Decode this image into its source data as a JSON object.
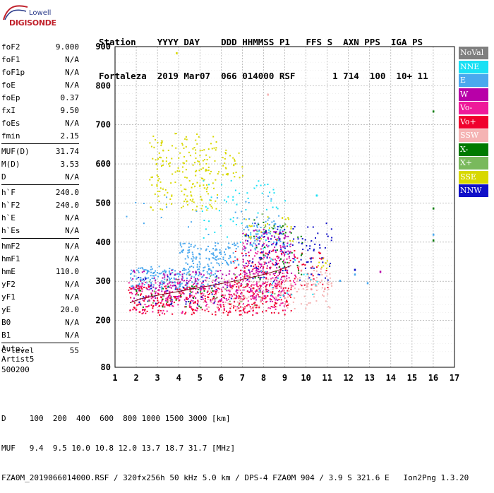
{
  "logo": {
    "line1": "Lowell",
    "line2": "DIGISONDE"
  },
  "header": {
    "labels": "Station    YYYY DAY    DDD HHMMSS P1   FFS S  AXN PPS  IGA PS",
    "values": "Fortaleza  2019 Mar07  066 014000 RSF       1 714  100  10+ 11"
  },
  "params_group1": [
    {
      "name": "foF2",
      "value": "9.000"
    },
    {
      "name": "foF1",
      "value": "N/A"
    },
    {
      "name": "foF1p",
      "value": "N/A"
    },
    {
      "name": "foE",
      "value": "N/A"
    },
    {
      "name": "foEp",
      "value": "0.37"
    },
    {
      "name": "fxI",
      "value": "9.50"
    },
    {
      "name": "foEs",
      "value": "N/A"
    },
    {
      "name": "fmin",
      "value": "2.15"
    }
  ],
  "params_group2": [
    {
      "name": "MUF(D)",
      "value": "31.74"
    },
    {
      "name": "M(D)",
      "value": "3.53"
    },
    {
      "name": "D",
      "value": "N/A"
    }
  ],
  "params_group3": [
    {
      "name": "h`F",
      "value": "240.0"
    },
    {
      "name": "h`F2",
      "value": "240.0"
    },
    {
      "name": "h`E",
      "value": "N/A"
    },
    {
      "name": "h`Es",
      "value": "N/A"
    }
  ],
  "params_group4": [
    {
      "name": "hmF2",
      "value": "N/A"
    },
    {
      "name": "hmF1",
      "value": "N/A"
    },
    {
      "name": "hmE",
      "value": "110.0"
    },
    {
      "name": "yF2",
      "value": "N/A"
    },
    {
      "name": "yF1",
      "value": "N/A"
    },
    {
      "name": "yE",
      "value": "20.0"
    },
    {
      "name": "B0",
      "value": "N/A"
    },
    {
      "name": "B1",
      "value": "N/A"
    }
  ],
  "params_group5": [
    {
      "name": "C-level",
      "value": "55"
    }
  ],
  "auto": {
    "line1": "Auto:",
    "line2": "Artist5",
    "line3": "500200"
  },
  "legend": [
    {
      "label": "NoVal",
      "color": "#7f7f7f"
    },
    {
      "label": "NNE",
      "color": "#19e0f4"
    },
    {
      "label": "E",
      "color": "#4aa8ee"
    },
    {
      "label": "W",
      "color": "#b800a8"
    },
    {
      "label": "Vo-",
      "color": "#ee1a9a"
    },
    {
      "label": "Vo+",
      "color": "#f0002e"
    },
    {
      "label": "SSW",
      "color": "#f5b3b3"
    },
    {
      "label": "X-",
      "color": "#007a00"
    },
    {
      "label": "X+",
      "color": "#79b95c"
    },
    {
      "label": "SSE",
      "color": "#d8d800"
    },
    {
      "label": "NNW",
      "color": "#1010c8"
    }
  ],
  "bottom": {
    "row1": "D     100  200  400  600  800 1000 1500 3000 [km]",
    "row2": "MUF   9.4  9.5 10.0 10.8 12.0 13.7 18.7 31.7 [MHz]",
    "row3": "FZA0M_2019066014000.RSF / 320fx256h 50 kHz 5.0 km / DPS-4 FZA0M 904 / 3.9 S 321.6 E   Ion2Png 1.3.20"
  },
  "chart_data": {
    "type": "scatter",
    "xlim": [
      1,
      17
    ],
    "ylim": [
      80,
      900
    ],
    "x_ticks": [
      1,
      2,
      3,
      4,
      5,
      6,
      7,
      8,
      9,
      10,
      11,
      12,
      13,
      14,
      15,
      16,
      17
    ],
    "y_ticks": [
      80,
      200,
      300,
      400,
      500,
      600,
      700,
      800,
      900
    ],
    "grid": true,
    "legend_position": "right",
    "trace": {
      "color": "#f0002e",
      "x": [
        1.7,
        2.2,
        2.8,
        3.4,
        4.0,
        4.6,
        5.2,
        5.8,
        6.4,
        7.0,
        7.6,
        8.2,
        8.8,
        9.3
      ],
      "y": [
        245,
        255,
        262,
        268,
        274,
        280,
        286,
        292,
        298,
        305,
        312,
        320,
        330,
        340
      ]
    },
    "series": [
      {
        "color_key": 2,
        "clusters": [
          {
            "x": [
              1.7,
              5.8
            ],
            "y": [
              280,
              340
            ],
            "n": 220
          },
          {
            "x": [
              4.0,
              6.8
            ],
            "y": [
              340,
              400
            ],
            "n": 120
          },
          {
            "x": [
              7.0,
              9.0
            ],
            "y": [
              380,
              470
            ],
            "n": 80
          },
          {
            "x": [
              1.5,
              8.5
            ],
            "y": [
              420,
              520
            ],
            "n": 20
          }
        ]
      },
      {
        "color_key": 3,
        "clusters": [
          {
            "x": [
              1.8,
              9.2
            ],
            "y": [
              250,
              330
            ],
            "n": 260
          },
          {
            "x": [
              7.0,
              9.3
            ],
            "y": [
              320,
              440
            ],
            "n": 110
          }
        ]
      },
      {
        "color_key": 4,
        "clusters": [
          {
            "x": [
              1.6,
              9.0
            ],
            "y": [
              220,
              300
            ],
            "n": 240
          },
          {
            "x": [
              7.0,
              9.5
            ],
            "y": [
              290,
              400
            ],
            "n": 80
          }
        ]
      },
      {
        "color_key": 5,
        "clusters": [
          {
            "x": [
              1.6,
              9.3
            ],
            "y": [
              215,
              290
            ],
            "n": 300
          },
          {
            "x": [
              6.5,
              11.0
            ],
            "y": [
              280,
              380
            ],
            "n": 120
          }
        ]
      },
      {
        "color_key": 6,
        "clusters": [
          {
            "x": [
              5.0,
              11.2
            ],
            "y": [
              230,
              310
            ],
            "n": 150
          },
          {
            "x": [
              9.5,
              11.2
            ],
            "y": [
              280,
              340
            ],
            "n": 40
          }
        ]
      },
      {
        "color_key": 1,
        "clusters": [
          {
            "x": [
              5.0,
              9.0
            ],
            "y": [
              400,
              560
            ],
            "n": 60
          },
          {
            "x": [
              7.5,
              10.5
            ],
            "y": [
              260,
              400
            ],
            "n": 30
          }
        ]
      },
      {
        "color_key": 9,
        "clusters": [
          {
            "x": [
              2.6,
              5.8
            ],
            "y": [
              480,
              680
            ],
            "n": 200
          },
          {
            "x": [
              5.8,
              7.0
            ],
            "y": [
              560,
              640
            ],
            "n": 30
          },
          {
            "x": [
              7.0,
              9.5
            ],
            "y": [
              400,
              470
            ],
            "n": 30
          },
          {
            "x": [
              10.5,
              11.2
            ],
            "y": [
              320,
              360
            ],
            "n": 10
          }
        ]
      },
      {
        "color_key": 7,
        "clusters": [
          {
            "x": [
              7.5,
              9.8
            ],
            "y": [
              300,
              460
            ],
            "n": 40
          },
          {
            "x": [
              1.8,
              6.0
            ],
            "y": [
              230,
              290
            ],
            "n": 30
          }
        ]
      },
      {
        "color_key": 10,
        "clusters": [
          {
            "x": [
              7.0,
              11.2
            ],
            "y": [
              300,
              450
            ],
            "n": 110
          },
          {
            "x": [
              1.8,
              6.5
            ],
            "y": [
              240,
              320
            ],
            "n": 40
          }
        ]
      },
      {
        "color_key": 8,
        "clusters": [
          {
            "x": [
              2.0,
              8.5
            ],
            "y": [
              240,
              320
            ],
            "n": 30
          },
          {
            "x": [
              7.5,
              9.0
            ],
            "y": [
              420,
              480
            ],
            "n": 10
          }
        ]
      }
    ],
    "isolated_points": [
      {
        "x": 16.0,
        "y": 735,
        "color_key": 7
      },
      {
        "x": 16.0,
        "y": 487,
        "color_key": 7
      },
      {
        "x": 16.0,
        "y": 420,
        "color_key": 2
      },
      {
        "x": 16.0,
        "y": 405,
        "color_key": 7
      },
      {
        "x": 13.5,
        "y": 325,
        "color_key": 3
      },
      {
        "x": 12.3,
        "y": 330,
        "color_key": 10
      },
      {
        "x": 12.3,
        "y": 318,
        "color_key": 2
      },
      {
        "x": 11.6,
        "y": 302,
        "color_key": 2
      },
      {
        "x": 12.9,
        "y": 296,
        "color_key": 2
      },
      {
        "x": 10.5,
        "y": 520,
        "color_key": 1
      },
      {
        "x": 8.2,
        "y": 778,
        "color_key": 6
      },
      {
        "x": 3.9,
        "y": 884,
        "color_key": 9
      }
    ]
  }
}
